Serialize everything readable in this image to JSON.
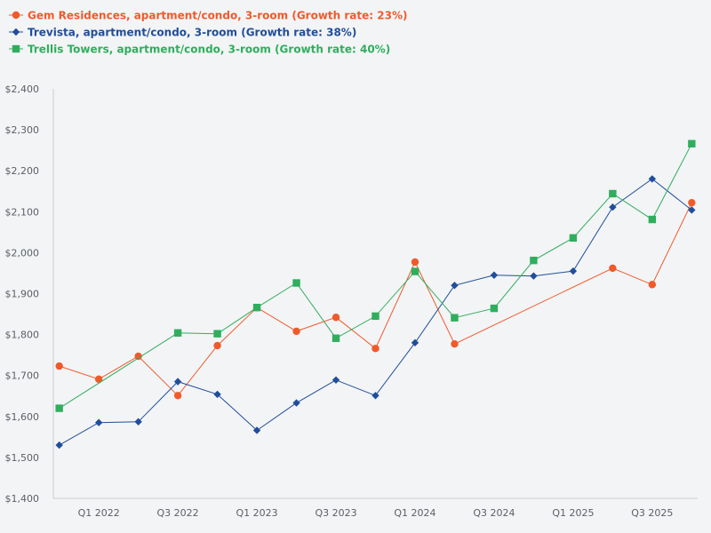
{
  "chart_data": {
    "type": "line",
    "title": "",
    "xlabel": "",
    "ylabel": "",
    "ylim": [
      1400,
      2400
    ],
    "yticks": [
      1400,
      1500,
      1600,
      1700,
      1800,
      1900,
      2000,
      2100,
      2200,
      2300,
      2400
    ],
    "ytick_labels": [
      "$1,400",
      "$1,500",
      "$1,600",
      "$1,700",
      "$1,800",
      "$1,900",
      "$2,000",
      "$2,100",
      "$2,200",
      "$2,300",
      "$2,400"
    ],
    "x": [
      0,
      1,
      2,
      3,
      4,
      5,
      6,
      7,
      8,
      9,
      10,
      11,
      12,
      13,
      14,
      15,
      16
    ],
    "xlim": [
      -0.15,
      16.15
    ],
    "xticks": [
      1,
      3,
      5,
      7,
      9,
      11,
      13,
      15
    ],
    "xtick_labels": [
      "Q1 2022",
      "Q3 2022",
      "Q1 2023",
      "Q3 2023",
      "Q1 2024",
      "Q3 2024",
      "Q1 2025",
      "Q3 2025"
    ],
    "legend_position": "top-left",
    "grid": false,
    "series": [
      {
        "name": "Gem Residences, apartment/condo, 3-room (Growth rate: 23%)",
        "color": "#f05a2a",
        "marker": "circle",
        "x": [
          0,
          1,
          2,
          3,
          4,
          5,
          6,
          7,
          8,
          9,
          10,
          14,
          15,
          16
        ],
        "values": [
          1723,
          1691,
          1747,
          1651,
          1773,
          1866,
          1808,
          1842,
          1766,
          1977,
          1777,
          1962,
          1922,
          2122
        ]
      },
      {
        "name": "Trevista, apartment/condo, 3-room (Growth rate: 38%)",
        "color": "#1f4e9b",
        "marker": "diamond",
        "x": [
          0,
          1,
          2,
          3,
          4,
          5,
          6,
          7,
          8,
          9,
          10,
          11,
          12,
          13,
          14,
          15,
          16
        ],
        "values": [
          1530,
          1585,
          1587,
          1685,
          1654,
          1566,
          1633,
          1689,
          1651,
          1780,
          1920,
          1945,
          1943,
          1955,
          2111,
          2180,
          2104
        ]
      },
      {
        "name": "Trellis Towers, apartment/condo, 3-room (Growth rate: 40%)",
        "color": "#2fae5d",
        "marker": "square",
        "x": [
          0,
          3,
          4,
          5,
          6,
          7,
          8,
          9,
          10,
          11,
          12,
          13,
          14,
          15,
          16
        ],
        "values": [
          1620,
          1804,
          1802,
          1866,
          1926,
          1791,
          1845,
          1954,
          1841,
          1864,
          1981,
          2036,
          2144,
          2081,
          2266
        ]
      }
    ]
  }
}
